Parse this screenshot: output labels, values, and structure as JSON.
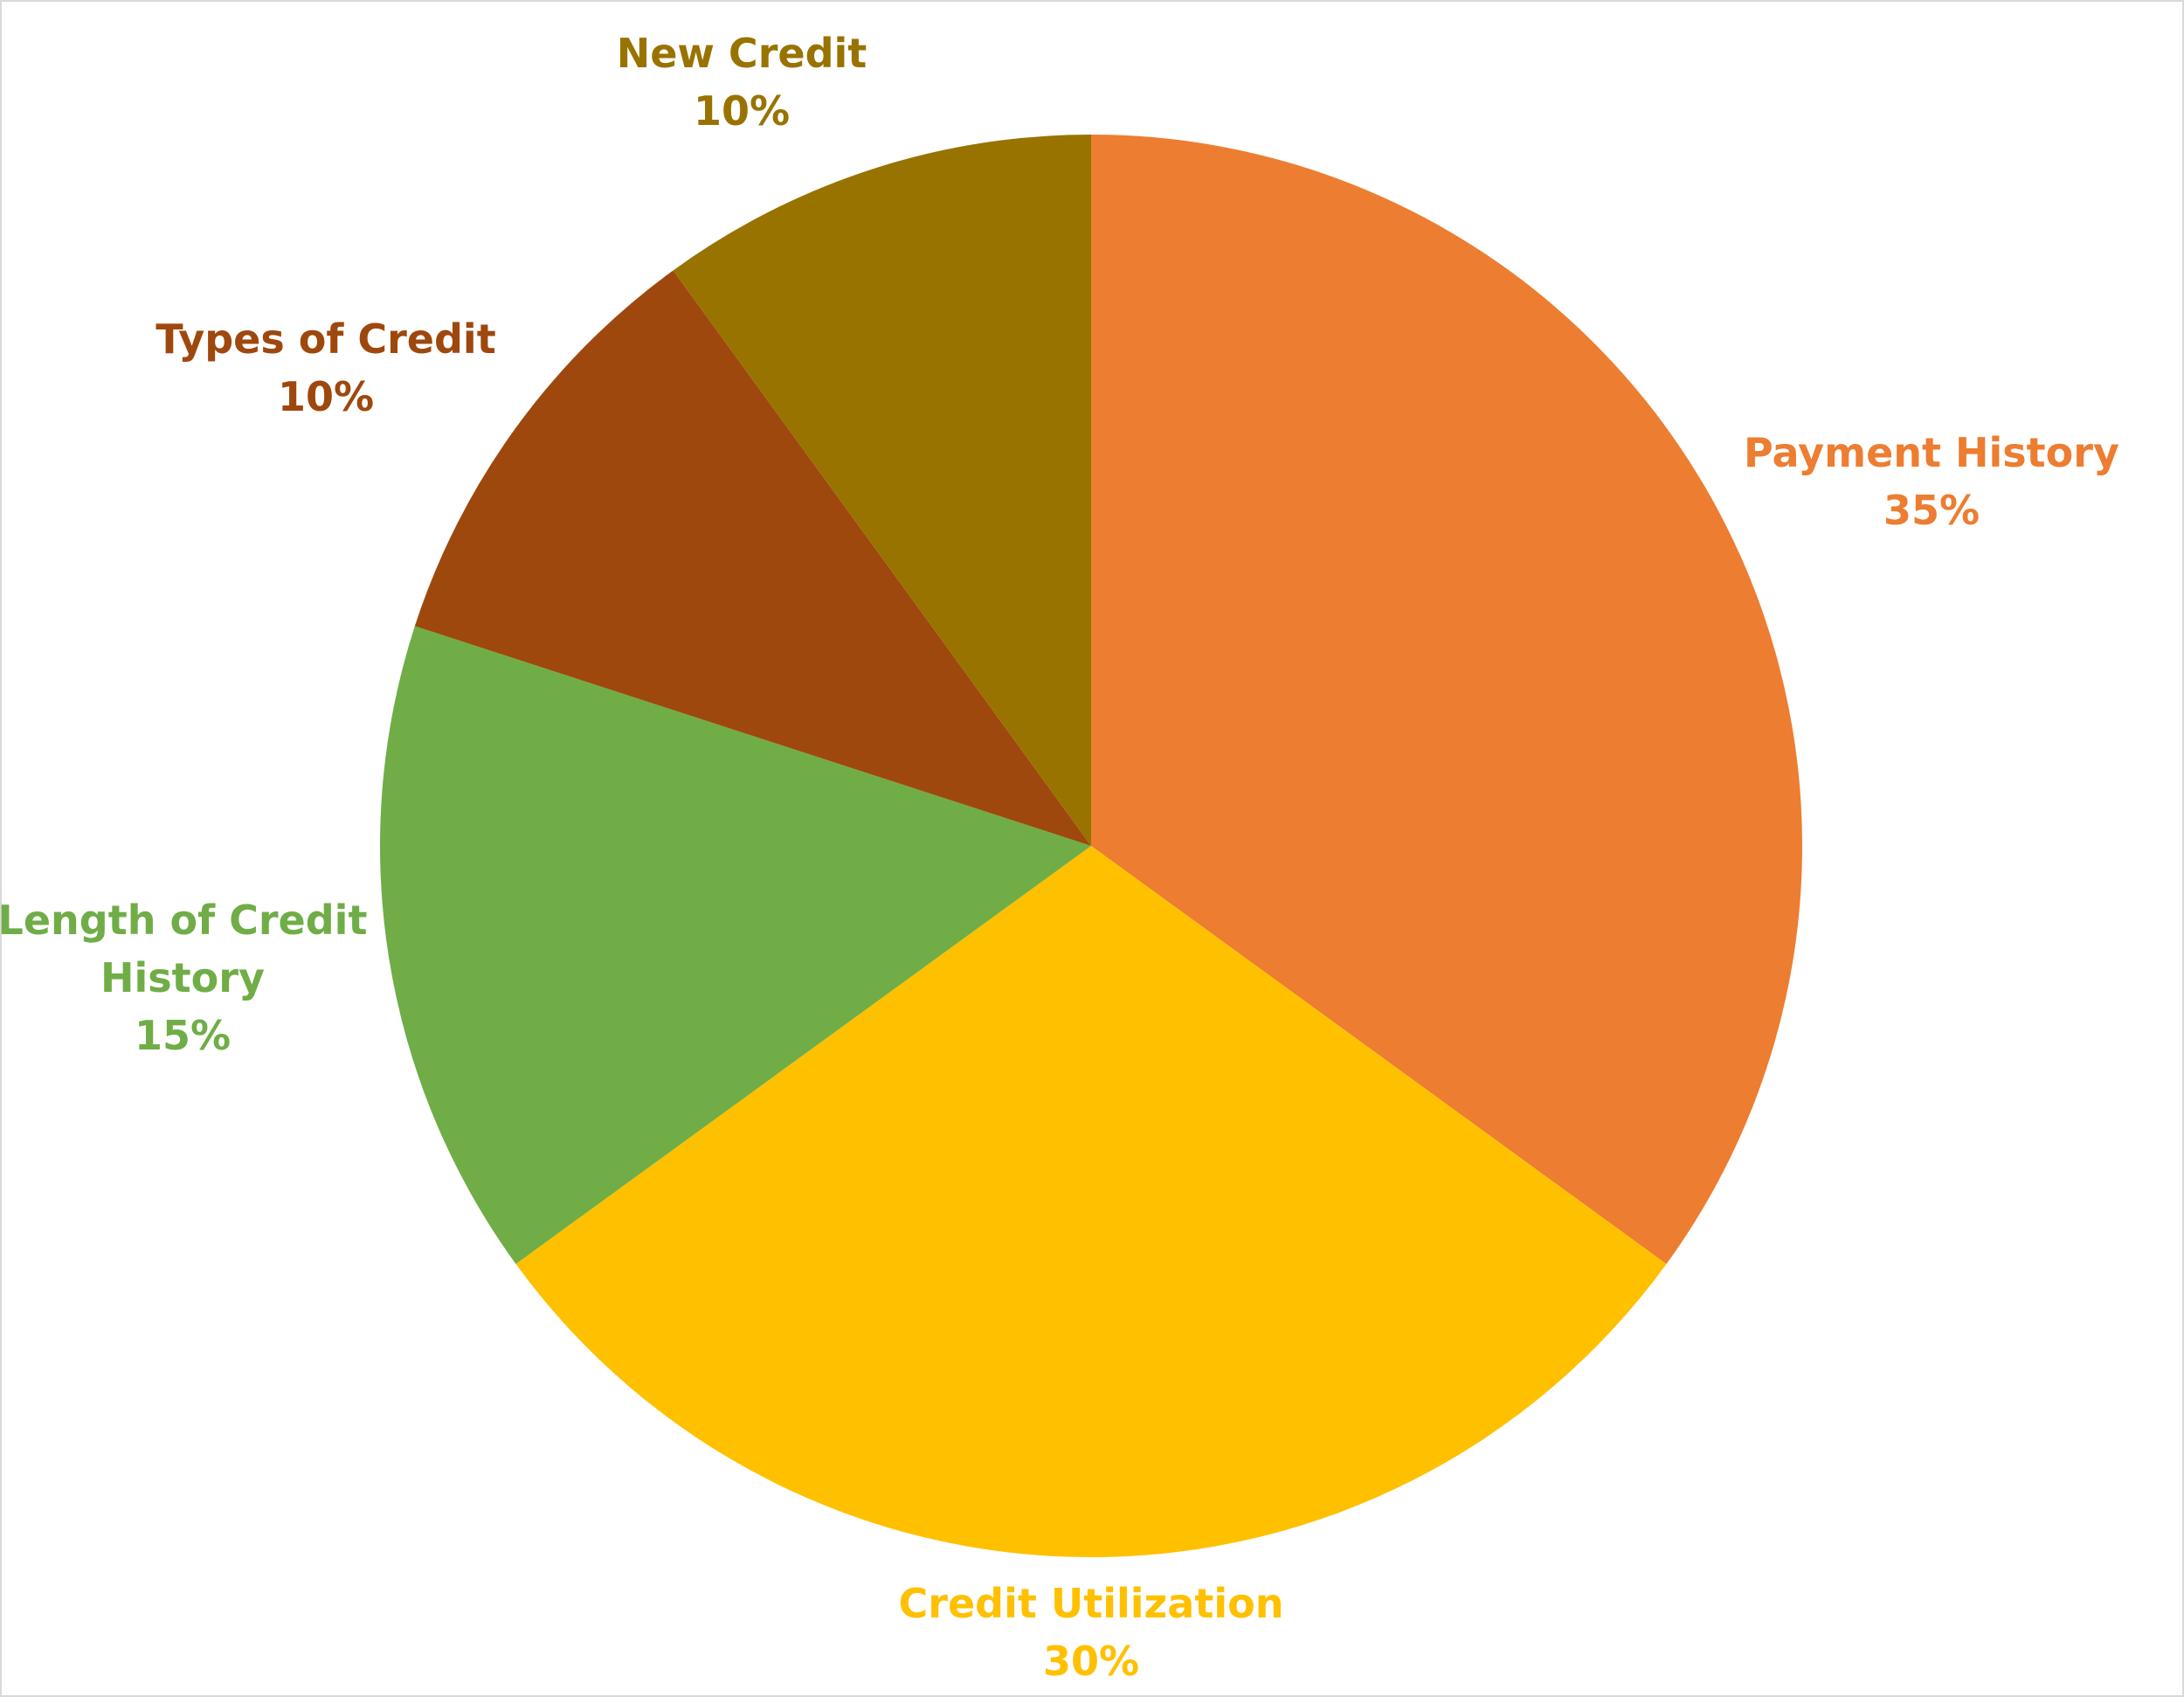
{
  "chart_data": {
    "type": "pie",
    "categories": [
      "Payment History",
      "Credit Utilization",
      "Length of Credit History",
      "Types of Credit",
      "New Credit"
    ],
    "values": [
      35,
      30,
      15,
      10,
      10
    ],
    "value_labels": [
      "35%",
      "30%",
      "15%",
      "10%",
      "10%"
    ],
    "colors": [
      "#ED7D31",
      "#FFC000",
      "#70AD47",
      "#9E480E",
      "#997300"
    ]
  }
}
